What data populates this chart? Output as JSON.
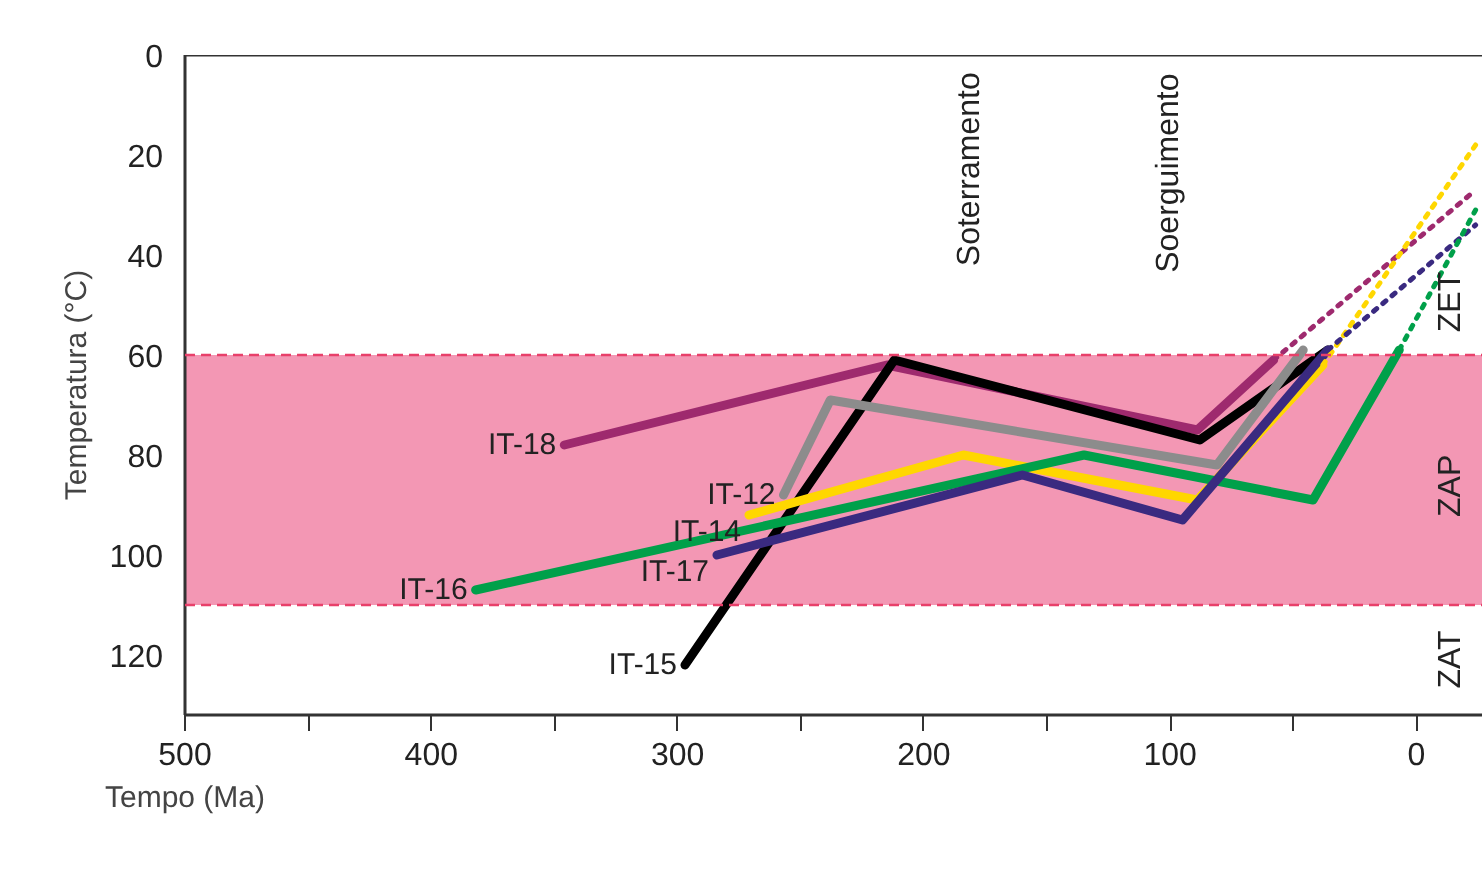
{
  "chart_data": {
    "type": "line",
    "xlabel": "Tempo (Ma)",
    "ylabel": "Temperatura (°C)",
    "xlim": [
      500,
      -27
    ],
    "ylim": [
      132,
      0
    ],
    "xticks": [
      500,
      {
        "value": 450,
        "label": null
      },
      400,
      {
        "value": 350,
        "label": null
      },
      300,
      {
        "value": 250,
        "label": null
      },
      200,
      {
        "value": 150,
        "label": null
      },
      100,
      {
        "value": 50,
        "label": null
      },
      0
    ],
    "yticks": [
      0,
      20,
      40,
      60,
      80,
      100,
      120
    ],
    "grid": false,
    "marker": "none",
    "bands": [
      {
        "axis": "y",
        "from": 60,
        "to": 110,
        "color": "#e8306a"
      }
    ],
    "ref_lines": [
      {
        "axis": "y",
        "value": 60,
        "color": "#e8406a",
        "line_style": "dashed"
      },
      {
        "axis": "y",
        "value": 110,
        "color": "#e8406a",
        "line_style": "dashed"
      }
    ],
    "series": [
      {
        "name": "IT-18",
        "color": "#9e2a6e",
        "x": [
          346,
          215,
          89,
          58
        ],
        "values": [
          78,
          62,
          75,
          61
        ]
      },
      {
        "name": "IT-15",
        "color": "#000000",
        "x": [
          297,
          212,
          88,
          36
        ],
        "values": [
          122,
          61,
          77,
          59
        ]
      },
      {
        "name": "IT-12",
        "color": "#8c8c8c",
        "x": [
          257,
          238,
          81,
          46
        ],
        "values": [
          88,
          69,
          82,
          59
        ]
      },
      {
        "name": "IT-14",
        "color": "#ffd700",
        "x": [
          271,
          184,
          89,
          38
        ],
        "values": [
          92,
          80,
          89,
          62
        ]
      },
      {
        "name": "IT-16",
        "color": "#00a04a",
        "x": [
          382,
          135,
          42,
          7
        ],
        "values": [
          107,
          80,
          89,
          59
        ]
      },
      {
        "name": "IT-17",
        "color": "#3a2a80",
        "x": [
          284,
          160,
          95,
          36
        ],
        "values": [
          100,
          84,
          93,
          59
        ]
      },
      {
        "color": "#9e2a6e",
        "line_style": "dotted",
        "x": [
          58,
          -24
        ],
        "values": [
          61,
          27
        ]
      },
      {
        "color": "#ffd700",
        "line_style": "dotted",
        "x": [
          38,
          -24
        ],
        "values": [
          62,
          18
        ]
      },
      {
        "color": "#3a2a80",
        "line_style": "dotted",
        "x": [
          36,
          -24
        ],
        "values": [
          59,
          34
        ]
      },
      {
        "color": "#00a04a",
        "line_style": "dotted",
        "x": [
          7,
          -24
        ],
        "values": [
          59,
          31
        ]
      }
    ],
    "annotations": [
      "Soterramento",
      "Soerguimento",
      "ZET",
      "ZAP",
      "ZAT"
    ]
  }
}
